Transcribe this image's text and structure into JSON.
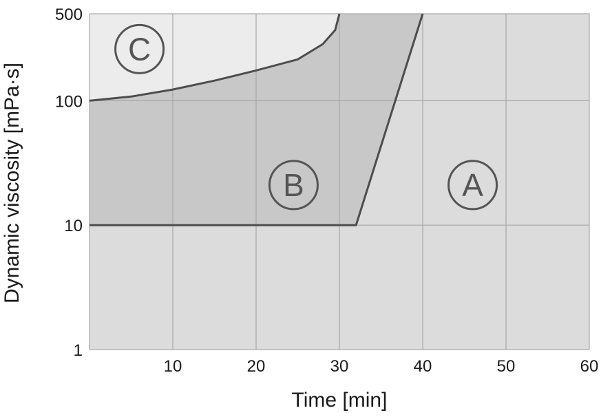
{
  "chart_data": {
    "type": "area",
    "xlabel": "Time [min]",
    "ylabel": "Dynamic viscosity [mPa·s]",
    "xlim": [
      0,
      60
    ],
    "ylim": [
      1,
      500
    ],
    "y_scale": "log",
    "grid": true,
    "x_ticks": [
      "10",
      "20",
      "30",
      "40",
      "50",
      "60"
    ],
    "y_ticks": [
      "1",
      "10",
      "100",
      "500"
    ],
    "regions": [
      {
        "label": "A",
        "color": "#dcdcdc"
      },
      {
        "label": "B",
        "color": "#c8c8c8"
      },
      {
        "label": "C",
        "color": "#ececec"
      }
    ],
    "boundaries": [
      {
        "between": [
          "B",
          "C"
        ],
        "points": [
          [
            0,
            100
          ],
          [
            5,
            108
          ],
          [
            10,
            123
          ],
          [
            15,
            145
          ],
          [
            20,
            175
          ],
          [
            25,
            215
          ],
          [
            28,
            285
          ],
          [
            29.5,
            370
          ],
          [
            30,
            500
          ]
        ]
      },
      {
        "between": [
          "A",
          "B"
        ],
        "points": [
          [
            0,
            10
          ],
          [
            32,
            10
          ],
          [
            40,
            500
          ]
        ]
      }
    ]
  }
}
